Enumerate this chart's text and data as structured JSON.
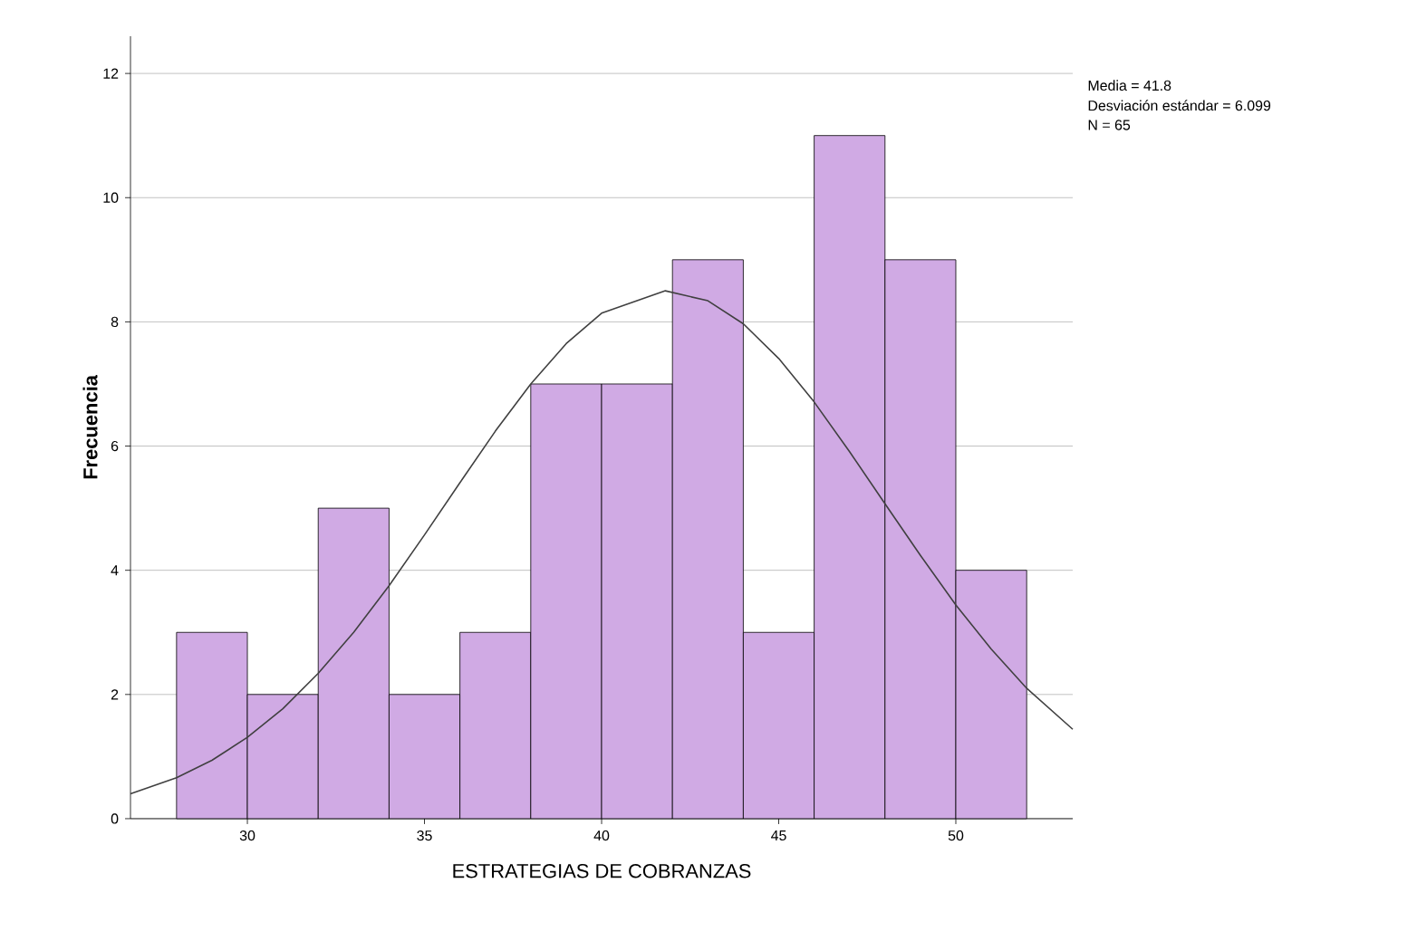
{
  "chart_data": {
    "type": "histogram",
    "xlabel": "ESTRATEGIAS DE COBRANZAS",
    "ylabel": "Frecuencia",
    "bins": [
      28,
      30,
      32,
      34,
      36,
      38,
      40,
      42,
      44,
      46,
      48,
      50,
      52
    ],
    "values": [
      3,
      2,
      5,
      2,
      3,
      7,
      7,
      9,
      3,
      11,
      9,
      4
    ],
    "color": "#d0aae4",
    "series": [
      {
        "type": "line",
        "color": "#404040",
        "x": [
          26.7,
          28,
          29,
          30,
          31,
          32,
          33,
          34,
          35,
          36,
          37,
          38,
          39,
          40,
          41.8,
          43,
          44,
          45,
          46,
          47,
          48,
          49,
          50,
          51,
          52,
          53.3
        ],
        "values": [
          0.4,
          0.66,
          0.94,
          1.31,
          1.77,
          2.34,
          3.0,
          3.75,
          4.57,
          5.41,
          6.24,
          7.0,
          7.65,
          8.14,
          8.5,
          8.34,
          7.97,
          7.41,
          6.71,
          5.91,
          5.07,
          4.24,
          3.44,
          2.73,
          2.1,
          1.44
        ]
      }
    ],
    "xlim": [
      26.7,
      53.3
    ],
    "ylim": [
      0,
      12.6
    ],
    "xticks": [
      30,
      35,
      40,
      45,
      50
    ],
    "yticks": [
      0,
      2,
      4,
      6,
      8,
      10,
      12
    ],
    "grid": "y",
    "annotations": [
      "Media = 41.8",
      "Desviación estándar = 6.099",
      "N = 65"
    ]
  }
}
